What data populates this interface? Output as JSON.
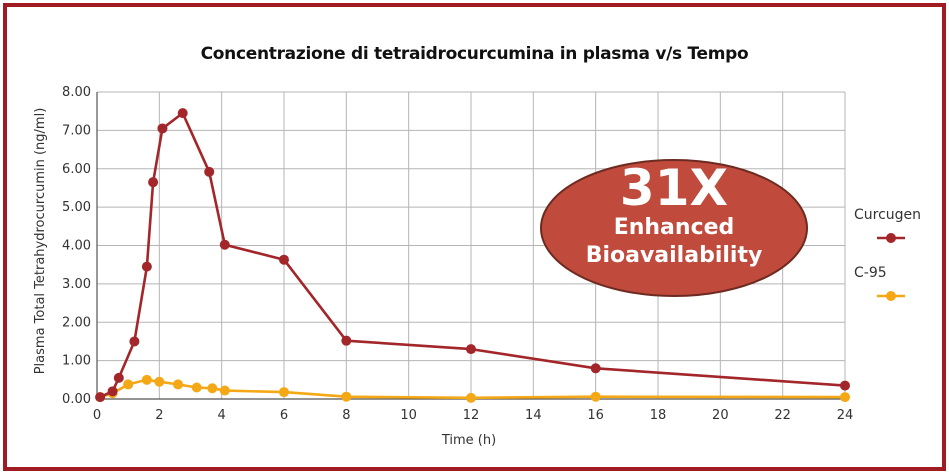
{
  "chart_data": {
    "type": "line",
    "title": "Concentrazione di tetraidrocurcumina in plasma v/s Tempo",
    "xlabel": "Time (h)",
    "ylabel": "Plasma Total Tetrahydrocurcumin (ng/ml)",
    "xlim": [
      0,
      24
    ],
    "ylim": [
      0,
      8
    ],
    "xticks": [
      "0",
      "2",
      "4",
      "6",
      "8",
      "10",
      "12",
      "14",
      "16",
      "18",
      "20",
      "22",
      "24"
    ],
    "yticks": [
      "0.00",
      "1.00",
      "2.00",
      "3.00",
      "4.00",
      "5.00",
      "6.00",
      "7.00",
      "8.00"
    ],
    "grid": true,
    "legend_position": "right",
    "series": [
      {
        "name": "Curcugen",
        "color": "#a3262a",
        "points": [
          [
            0.1,
            0.05
          ],
          [
            0.5,
            0.2
          ],
          [
            0.7,
            0.55
          ],
          [
            1.2,
            1.5
          ],
          [
            1.6,
            3.45
          ],
          [
            1.8,
            5.65
          ],
          [
            2.1,
            7.05
          ],
          [
            2.75,
            7.45
          ],
          [
            3.6,
            5.92
          ],
          [
            4.1,
            4.02
          ],
          [
            6.0,
            3.63
          ],
          [
            8.0,
            1.52
          ],
          [
            12.0,
            1.3
          ],
          [
            16.0,
            0.8
          ],
          [
            24.0,
            0.35
          ]
        ]
      },
      {
        "name": "C-95",
        "color": "#f5a816",
        "points": [
          [
            0.1,
            0.05
          ],
          [
            0.5,
            0.15
          ],
          [
            1.0,
            0.38
          ],
          [
            1.6,
            0.5
          ],
          [
            2.0,
            0.45
          ],
          [
            2.6,
            0.38
          ],
          [
            3.2,
            0.3
          ],
          [
            3.7,
            0.28
          ],
          [
            4.1,
            0.22
          ],
          [
            6.0,
            0.18
          ],
          [
            8.0,
            0.06
          ],
          [
            12.0,
            0.03
          ],
          [
            16.0,
            0.06
          ],
          [
            24.0,
            0.05
          ]
        ]
      }
    ],
    "annotation": {
      "line1": "31X",
      "line2": "Enhanced",
      "line3": "Bioavailability",
      "color": "#c04a3c"
    }
  }
}
